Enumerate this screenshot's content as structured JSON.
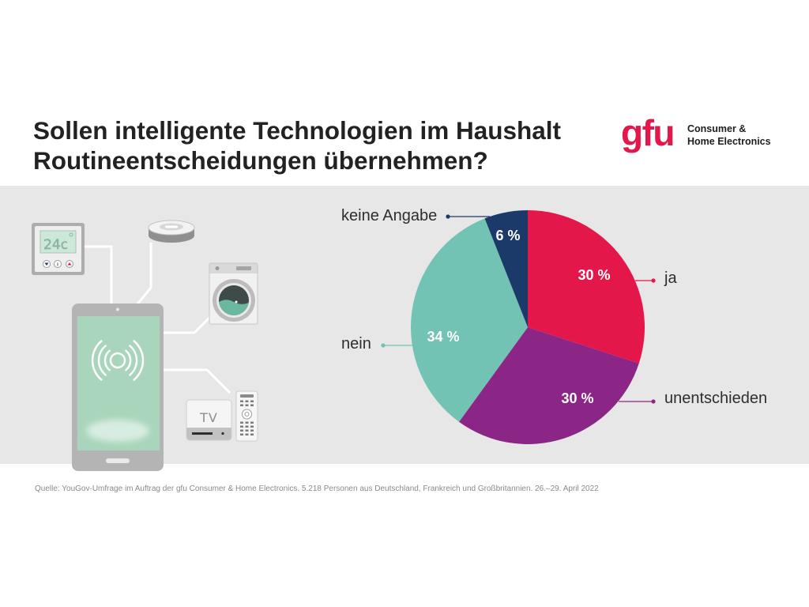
{
  "chart_data": {
    "type": "pie",
    "title_lines": [
      "Sollen intelligente Technologien im Haushalt",
      "Routineentscheidungen übernehmen?"
    ],
    "categories": [
      "ja",
      "unentschieden",
      "nein",
      "keine Angabe"
    ],
    "values": [
      30,
      30,
      34,
      6
    ],
    "data_labels": [
      "30 %",
      "30 %",
      "34 %",
      "6 %"
    ],
    "colors": [
      "#e4174b",
      "#8c2686",
      "#72c3b4",
      "#1c3a69"
    ]
  },
  "logo": {
    "mark": "gfu",
    "line1": "Consumer &",
    "line2": "Home Electronics",
    "color": "#e4174b"
  },
  "illustration": {
    "thermostat_display": "24c",
    "tv_label": "TV",
    "icons": [
      "thermostat-icon",
      "robot-vacuum-icon",
      "washing-machine-icon",
      "tablet-icon",
      "wireless-signal-icon",
      "tv-box-icon",
      "remote-control-icon"
    ]
  },
  "footer": {
    "source": "Quelle: YouGov-Umfrage im Auftrag der gfu Consumer & Home Electronics. 5.218 Personen aus Deutschland, Frankreich und Großbritannien. 26.–29. April 2022"
  }
}
